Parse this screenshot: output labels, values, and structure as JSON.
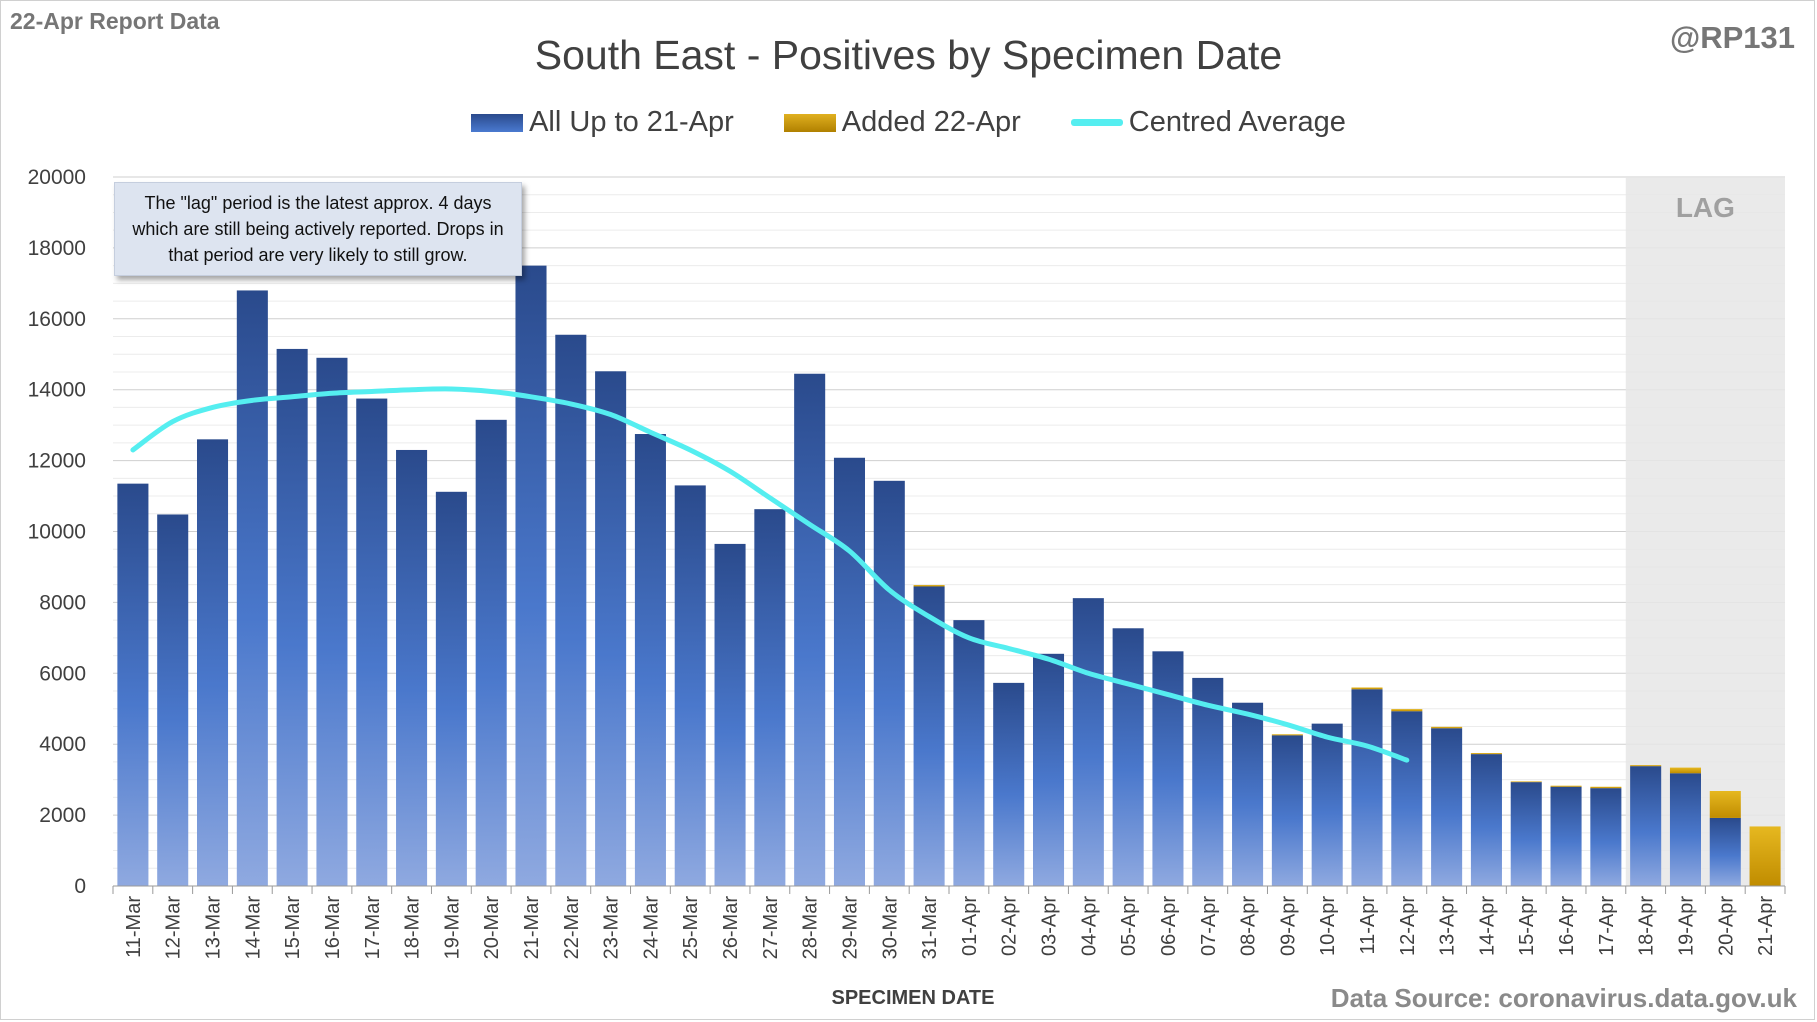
{
  "header": {
    "report_label": "22-Apr Report Data",
    "handle": "@RP131",
    "source": "Data Source: coronavirus.data.gov.uk"
  },
  "note": "The \"lag\" period is the latest approx. 4 days which are still being actively reported.  Drops in that period are very likely to still grow.",
  "colors": {
    "bar_blue_top": "#2a4a8c",
    "bar_blue_bottom": "#8fa9e0",
    "bar_gold": "#e0b020",
    "average_line": "#55eef0",
    "lag_shade": "#e6e6e6"
  },
  "chart_data": {
    "type": "bar",
    "title": "South East - Positives by Specimen Date",
    "xlabel": "SPECIMEN DATE",
    "ylabel": "",
    "ylim": [
      0,
      20000
    ],
    "yticks": [
      0,
      2000,
      4000,
      6000,
      8000,
      10000,
      12000,
      14000,
      16000,
      18000,
      20000
    ],
    "grid": true,
    "legend_position": "top-center",
    "lag_label": "LAG",
    "lag_categories": [
      "18-Apr",
      "19-Apr",
      "20-Apr",
      "21-Apr"
    ],
    "stacked": true,
    "categories": [
      "11-Mar",
      "12-Mar",
      "13-Mar",
      "14-Mar",
      "15-Mar",
      "16-Mar",
      "17-Mar",
      "18-Mar",
      "19-Mar",
      "20-Mar",
      "21-Mar",
      "22-Mar",
      "23-Mar",
      "24-Mar",
      "25-Mar",
      "26-Mar",
      "27-Mar",
      "28-Mar",
      "29-Mar",
      "30-Mar",
      "31-Mar",
      "01-Apr",
      "02-Apr",
      "03-Apr",
      "04-Apr",
      "05-Apr",
      "06-Apr",
      "07-Apr",
      "08-Apr",
      "09-Apr",
      "10-Apr",
      "11-Apr",
      "12-Apr",
      "13-Apr",
      "14-Apr",
      "15-Apr",
      "16-Apr",
      "17-Apr",
      "18-Apr",
      "19-Apr",
      "20-Apr",
      "21-Apr"
    ],
    "series": [
      {
        "name": "All Up to 21-Apr",
        "kind": "bar",
        "values": [
          11350,
          10480,
          12600,
          16800,
          15150,
          14900,
          13750,
          12300,
          11120,
          13150,
          17500,
          15550,
          14520,
          12750,
          11300,
          9650,
          10630,
          14450,
          12080,
          11430,
          8450,
          7500,
          5730,
          6550,
          8120,
          7270,
          6620,
          5870,
          5170,
          4250,
          4580,
          5550,
          4930,
          4450,
          3720,
          2930,
          2800,
          2760,
          3380,
          3180,
          1920,
          0
        ]
      },
      {
        "name": "Added 22-Apr",
        "kind": "bar",
        "values": [
          0,
          0,
          0,
          0,
          0,
          0,
          0,
          0,
          0,
          0,
          0,
          0,
          0,
          0,
          0,
          0,
          0,
          0,
          0,
          0,
          40,
          0,
          0,
          0,
          0,
          0,
          0,
          0,
          0,
          30,
          0,
          50,
          60,
          40,
          30,
          20,
          30,
          40,
          30,
          160,
          760,
          1680
        ]
      },
      {
        "name": "Centred Average",
        "kind": "line",
        "values": [
          12300,
          13100,
          13500,
          13700,
          13800,
          13900,
          13950,
          14000,
          14020,
          13950,
          13800,
          13600,
          13300,
          12800,
          12300,
          11700,
          10950,
          10200,
          9450,
          8350,
          7600,
          7000,
          6700,
          6400,
          6000,
          5700,
          5400,
          5100,
          4850,
          4550,
          4200,
          3950,
          3550,
          null,
          null,
          null,
          null,
          null,
          null,
          null,
          null,
          null
        ],
        "line_x_offset": 0
      }
    ]
  }
}
